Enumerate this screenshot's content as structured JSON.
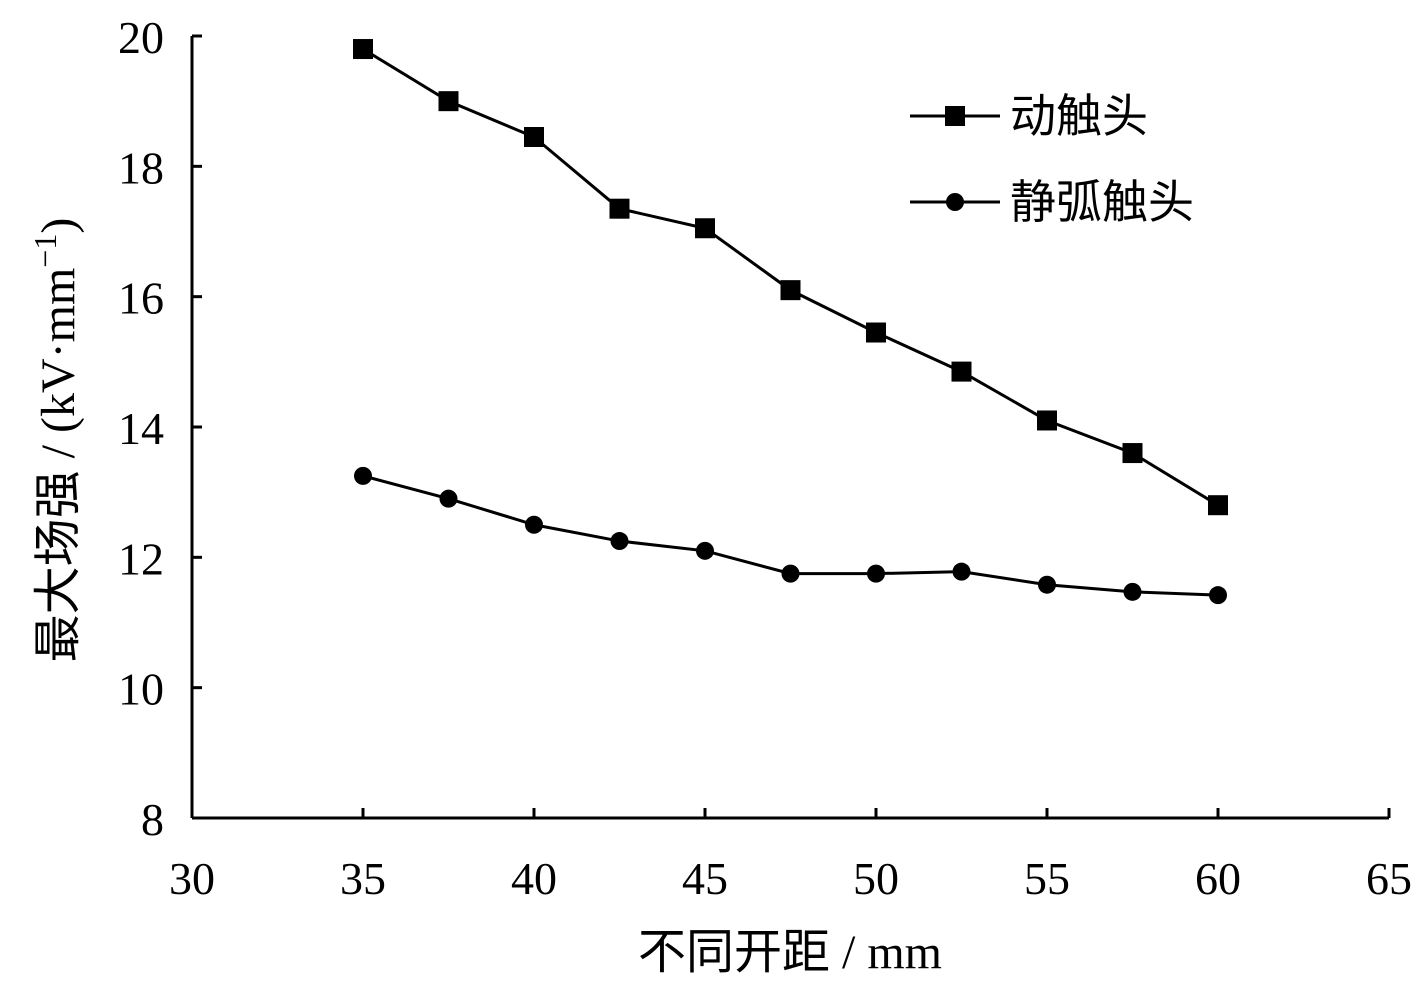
{
  "chart_data": {
    "type": "line",
    "xlabel": "不同开距 / mm",
    "ylabel_main": "最大场强 / (kV·mm",
    "ylabel_sup": "−1",
    "ylabel_close": ")",
    "xlim": [
      30,
      65
    ],
    "ylim": [
      8,
      20
    ],
    "xticks": [
      30,
      35,
      40,
      45,
      50,
      55,
      60,
      65
    ],
    "yticks": [
      8,
      10,
      12,
      14,
      16,
      18,
      20
    ],
    "grid": false,
    "legend_position": "top-right",
    "series": [
      {
        "name": "动触头",
        "marker": "square",
        "x": [
          35,
          37.5,
          40,
          42.5,
          45,
          47.5,
          50,
          52.5,
          55,
          57.5,
          60
        ],
        "y": [
          19.8,
          19.0,
          18.45,
          17.35,
          17.05,
          16.1,
          15.45,
          14.85,
          14.1,
          13.6,
          12.8
        ]
      },
      {
        "name": "静弧触头",
        "marker": "circle",
        "x": [
          35,
          37.5,
          40,
          42.5,
          45,
          47.5,
          50,
          52.5,
          55,
          57.5,
          60
        ],
        "y": [
          13.25,
          12.9,
          12.5,
          12.25,
          12.1,
          11.75,
          11.75,
          11.78,
          11.58,
          11.47,
          11.42
        ]
      }
    ]
  }
}
